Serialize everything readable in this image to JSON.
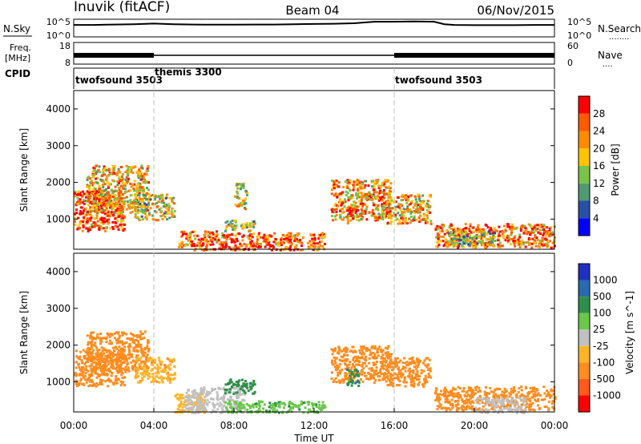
{
  "header": {
    "title_left": "Inuvik (fitACF)",
    "title_center": "Beam 04",
    "title_right": "06/Nov/2015"
  },
  "noise_panel": {
    "left_label": "N.Sky",
    "right_label": "N.Search",
    "right_legend": "........",
    "left_tick_top": "10^5",
    "left_tick_bottom": "10^0",
    "right_tick_top": "10^5",
    "right_tick_bottom": "10^0"
  },
  "freq_panel": {
    "left_label_top": "Freq.",
    "left_label_bottom": "[MHz]",
    "right_label": "Nave",
    "right_legend": "....",
    "left_tick_top": "18",
    "left_tick_bottom": "8",
    "right_tick_top": "60",
    "right_tick_bottom": "0"
  },
  "cpid_panel": {
    "label": "CPID",
    "segments": [
      "twofsound 3503",
      "themis 3300",
      "twofsound 3503"
    ]
  },
  "time_axis": {
    "ticks": [
      "00:00",
      "04:00",
      "08:00",
      "12:00",
      "16:00",
      "20:00",
      "00:00"
    ],
    "xlabel": "Time UT"
  },
  "colors": {
    "power_scale": [
      "#0000ff",
      "#2a4fa6",
      "#4f9a72",
      "#7ac24a",
      "#ffc400",
      "#ff8c00",
      "#ff5a00",
      "#ff0000"
    ],
    "velocity_scale": [
      "#ff0000",
      "#ff5a1e",
      "#ff8c1e",
      "#ffb428",
      "#c0c0c0",
      "#6ac74a",
      "#2f8f4a",
      "#2a6ab0",
      "#2030c0"
    ],
    "ground_scatter": "#c0c0c0"
  },
  "chart_data": [
    {
      "type": "line",
      "title": "",
      "xlabel": "",
      "ylabel": "N.Sky",
      "x_range_hours": [
        0,
        24
      ],
      "y_scale": "log",
      "ylim": [
        1,
        100000
      ],
      "series": [
        {
          "name": "N.Sky",
          "x": [
            0,
            1,
            2,
            3,
            4,
            5,
            6,
            7,
            8,
            9,
            10,
            11,
            12,
            13,
            14,
            15,
            16,
            17,
            18,
            18.5,
            19,
            20,
            21,
            22,
            23,
            24
          ],
          "y": [
            3000,
            3000,
            4000,
            5000,
            8000,
            5000,
            4000,
            3500,
            3500,
            4000,
            4000,
            5000,
            6000,
            7000,
            10000,
            30000,
            30000,
            35000,
            30000,
            5000,
            3000,
            2500,
            2500,
            2500,
            3000,
            3000
          ]
        }
      ]
    },
    {
      "type": "line",
      "title": "",
      "xlabel": "",
      "ylabel": "Freq. [MHz]",
      "x_range_hours": [
        0,
        24
      ],
      "ylim": [
        8,
        18
      ],
      "series": [
        {
          "name": "Freq.",
          "x": [
            0,
            4,
            4,
            16,
            16,
            24
          ],
          "y": [
            12,
            12,
            12,
            12,
            12,
            12
          ]
        }
      ]
    },
    {
      "type": "table",
      "title": "",
      "columns": [
        "CPID",
        "start_hour",
        "end_hour"
      ],
      "rows": [
        [
          "twofsound 3503",
          0,
          4
        ],
        [
          "themis 3300",
          4,
          16
        ],
        [
          "twofsound 3503",
          16,
          24
        ]
      ]
    },
    {
      "type": "heatmap",
      "title": "",
      "xlabel": "",
      "ylabel": "Slant Range [km]",
      "x_range_hours": [
        0,
        24
      ],
      "ylim": [
        180,
        4500
      ],
      "yticks": [
        1000,
        2000,
        3000,
        4000
      ],
      "colorbar": {
        "label": "Power [dB]",
        "range": [
          0,
          30
        ],
        "ticks": [
          4,
          8,
          12,
          16,
          20,
          24,
          28
        ]
      },
      "regions": [
        {
          "t0": 0.0,
          "t1": 2.5,
          "r0": 700,
          "r1": 1800,
          "v": 27
        },
        {
          "t0": 0.6,
          "t1": 3.7,
          "r0": 1200,
          "r1": 2500,
          "v": 20
        },
        {
          "t0": 3.0,
          "t1": 5.0,
          "r0": 1000,
          "r1": 1700,
          "v": 16
        },
        {
          "t0": 5.2,
          "t1": 7.5,
          "r0": 180,
          "r1": 700,
          "v": 26
        },
        {
          "t0": 7.5,
          "t1": 12.5,
          "r0": 180,
          "r1": 650,
          "v": 27
        },
        {
          "t0": 7.5,
          "t1": 9.0,
          "r0": 700,
          "r1": 1000,
          "v": 14
        },
        {
          "t0": 8.0,
          "t1": 8.6,
          "r0": 1300,
          "r1": 2000,
          "v": 18
        },
        {
          "t0": 12.8,
          "t1": 15.8,
          "r0": 1000,
          "r1": 2100,
          "v": 22
        },
        {
          "t0": 13.6,
          "t1": 14.1,
          "r0": 900,
          "r1": 1300,
          "v": 24
        },
        {
          "t0": 15.6,
          "t1": 17.8,
          "r0": 900,
          "r1": 1700,
          "v": 20
        },
        {
          "t0": 18.0,
          "t1": 24.0,
          "r0": 250,
          "r1": 900,
          "v": 24
        },
        {
          "t0": 18.5,
          "t1": 21.0,
          "r0": 300,
          "r1": 700,
          "v": 14
        }
      ]
    },
    {
      "type": "heatmap",
      "title": "",
      "xlabel": "Time UT",
      "ylabel": "Slant Range [km]",
      "x_range_hours": [
        0,
        24
      ],
      "ylim": [
        180,
        4500
      ],
      "yticks": [
        1000,
        2000,
        3000,
        4000
      ],
      "colorbar": {
        "label": "Velocity [m s^-1]",
        "ticks": [
          1000,
          500,
          100,
          25,
          -25,
          -100,
          -500,
          -1000
        ]
      },
      "regions": [
        {
          "t0": 0.0,
          "t1": 2.5,
          "r0": 900,
          "r1": 1900,
          "v": -300
        },
        {
          "t0": 0.6,
          "t1": 3.7,
          "r0": 1300,
          "r1": 2400,
          "v": -150
        },
        {
          "t0": 3.0,
          "t1": 5.0,
          "r0": 1000,
          "r1": 1700,
          "v": -80
        },
        {
          "t0": 5.0,
          "t1": 6.5,
          "r0": 180,
          "r1": 700,
          "v": -60
        },
        {
          "t0": 5.5,
          "t1": 8.5,
          "r0": 180,
          "r1": 900,
          "v": 0
        },
        {
          "t0": 7.5,
          "t1": 12.5,
          "r0": 180,
          "r1": 500,
          "v": 80
        },
        {
          "t0": 7.5,
          "t1": 9.0,
          "r0": 700,
          "r1": 1100,
          "v": 200
        },
        {
          "t0": 12.8,
          "t1": 15.8,
          "r0": 1000,
          "r1": 2000,
          "v": -200
        },
        {
          "t0": 13.6,
          "t1": 14.2,
          "r0": 900,
          "r1": 1400,
          "v": 400
        },
        {
          "t0": 15.6,
          "t1": 17.8,
          "r0": 900,
          "r1": 1700,
          "v": -150
        },
        {
          "t0": 18.0,
          "t1": 24.0,
          "r0": 250,
          "r1": 900,
          "v": -150
        },
        {
          "t0": 20.0,
          "t1": 22.5,
          "r0": 180,
          "r1": 600,
          "v": 0
        }
      ]
    }
  ]
}
